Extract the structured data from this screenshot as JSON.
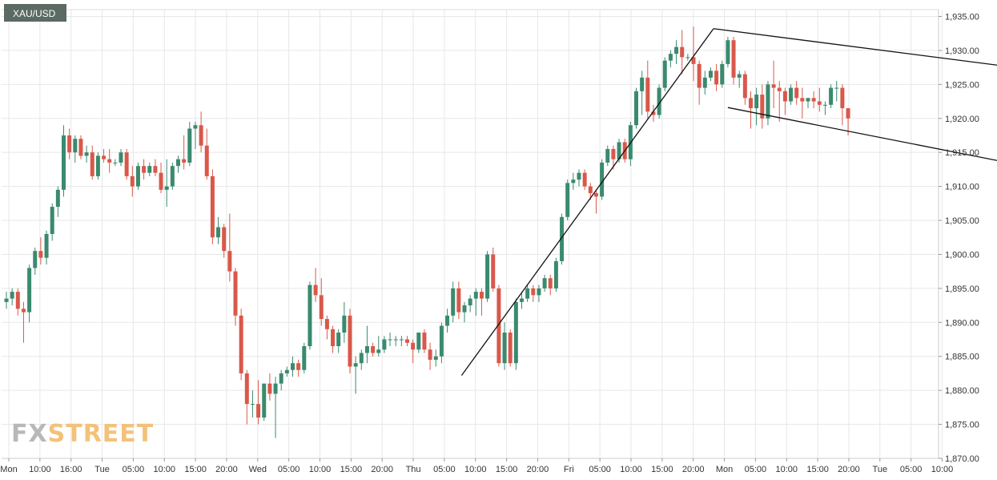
{
  "chart_data": {
    "type": "candlestick",
    "symbol": "XAU/USD",
    "watermark": {
      "part1": "FX",
      "part2": "STREET"
    },
    "colors": {
      "up": "#3a8a6e",
      "down": "#d9584a",
      "grid": "#e7e7e7",
      "pattern": "#111111",
      "label_bg": "#5b6a63"
    },
    "ylim": [
      1870,
      1936
    ],
    "y_ticks": [
      1870,
      1875,
      1880,
      1885,
      1890,
      1895,
      1900,
      1905,
      1910,
      1915,
      1920,
      1925,
      1930,
      1935
    ],
    "y_tick_labels": [
      "1,870.00",
      "1,875.00",
      "1,880.00",
      "1,885.00",
      "1,890.00",
      "1,895.00",
      "1,900.00",
      "1,905.00",
      "1,910.00",
      "1,915.00",
      "1,920.00",
      "1,925.00",
      "1,930.00",
      "1,935.00"
    ],
    "x_tick_labels": [
      "Mon",
      "10:00",
      "16:00",
      "Tue",
      "05:00",
      "10:00",
      "15:00",
      "20:00",
      "Wed",
      "05:00",
      "10:00",
      "15:00",
      "20:00",
      "Thu",
      "05:00",
      "10:00",
      "15:00",
      "20:00",
      "Fri",
      "05:00",
      "10:00",
      "15:00",
      "20:00",
      "Mon",
      "05:00",
      "10:00",
      "15:00",
      "20:00",
      "Tue",
      "05:00",
      "10:00"
    ],
    "candles": [
      [
        1893.0,
        1894.5,
        1892.0,
        1893.5
      ],
      [
        1893.5,
        1895.0,
        1892.5,
        1894.5
      ],
      [
        1894.5,
        1895.0,
        1891.0,
        1892.0
      ],
      [
        1892.0,
        1893.0,
        1887.0,
        1891.5
      ],
      [
        1891.5,
        1898.5,
        1890.0,
        1898.0
      ],
      [
        1898.0,
        1901.0,
        1897.0,
        1900.5
      ],
      [
        1900.5,
        1902.5,
        1898.5,
        1899.5
      ],
      [
        1899.5,
        1903.5,
        1898.5,
        1903.0
      ],
      [
        1903.0,
        1907.5,
        1902.0,
        1907.0
      ],
      [
        1907.0,
        1910.0,
        1905.5,
        1909.5
      ],
      [
        1909.5,
        1919.0,
        1908.5,
        1917.5
      ],
      [
        1917.5,
        1918.5,
        1914.0,
        1915.0
      ],
      [
        1915.0,
        1917.5,
        1913.5,
        1917.0
      ],
      [
        1917.0,
        1917.5,
        1914.0,
        1914.5
      ],
      [
        1914.5,
        1916.0,
        1913.5,
        1915.0
      ],
      [
        1915.0,
        1916.0,
        1911.0,
        1911.5
      ],
      [
        1911.5,
        1915.0,
        1911.0,
        1914.5
      ],
      [
        1914.5,
        1915.5,
        1913.5,
        1914.0
      ],
      [
        1914.0,
        1915.5,
        1912.0,
        1913.5
      ],
      [
        1913.5,
        1914.0,
        1913.0,
        1913.5
      ],
      [
        1913.5,
        1915.5,
        1913.0,
        1915.0
      ],
      [
        1915.0,
        1915.5,
        1911.0,
        1911.5
      ],
      [
        1911.5,
        1913.0,
        1908.5,
        1910.0
      ],
      [
        1910.0,
        1913.5,
        1909.5,
        1913.0
      ],
      [
        1913.0,
        1914.0,
        1911.0,
        1912.0
      ],
      [
        1912.0,
        1913.5,
        1911.5,
        1913.0
      ],
      [
        1913.0,
        1914.0,
        1911.5,
        1912.0
      ],
      [
        1912.0,
        1913.5,
        1909.0,
        1909.5
      ],
      [
        1909.5,
        1914.0,
        1907.0,
        1910.0
      ],
      [
        1910.0,
        1913.5,
        1909.5,
        1913.0
      ],
      [
        1913.0,
        1914.5,
        1912.0,
        1914.0
      ],
      [
        1914.0,
        1917.5,
        1912.5,
        1913.5
      ],
      [
        1913.5,
        1919.5,
        1913.0,
        1918.5
      ],
      [
        1918.5,
        1919.5,
        1915.5,
        1919.0
      ],
      [
        1919.0,
        1921.0,
        1915.0,
        1916.0
      ],
      [
        1916.0,
        1918.5,
        1911.0,
        1911.5
      ],
      [
        1911.5,
        1912.5,
        1901.5,
        1902.5
      ],
      [
        1902.5,
        1905.5,
        1901.5,
        1904.0
      ],
      [
        1904.0,
        1904.5,
        1899.5,
        1900.5
      ],
      [
        1900.5,
        1906.0,
        1896.0,
        1897.5
      ],
      [
        1897.5,
        1898.0,
        1889.5,
        1891.0
      ],
      [
        1891.0,
        1892.0,
        1881.5,
        1882.5
      ],
      [
        1882.5,
        1883.0,
        1875.0,
        1878.0
      ],
      [
        1878.0,
        1880.0,
        1876.0,
        1878.0
      ],
      [
        1878.0,
        1881.5,
        1875.0,
        1876.0
      ],
      [
        1876.0,
        1881.0,
        1875.5,
        1881.0
      ],
      [
        1881.0,
        1882.5,
        1878.5,
        1879.5
      ],
      [
        1879.5,
        1882.0,
        1873.0,
        1881.0
      ],
      [
        1881.0,
        1883.0,
        1880.0,
        1882.5
      ],
      [
        1882.5,
        1883.5,
        1882.0,
        1883.0
      ],
      [
        1883.0,
        1885.0,
        1882.0,
        1884.0
      ],
      [
        1884.0,
        1884.5,
        1882.0,
        1883.0
      ],
      [
        1883.0,
        1887.0,
        1882.5,
        1886.5
      ],
      [
        1886.5,
        1896.0,
        1886.0,
        1895.5
      ],
      [
        1895.5,
        1898.0,
        1893.0,
        1894.0
      ],
      [
        1894.0,
        1896.5,
        1889.5,
        1890.5
      ],
      [
        1890.5,
        1891.0,
        1887.5,
        1889.0
      ],
      [
        1889.0,
        1889.5,
        1885.5,
        1886.5
      ],
      [
        1886.5,
        1889.0,
        1885.5,
        1888.5
      ],
      [
        1888.5,
        1893.0,
        1887.0,
        1891.0
      ],
      [
        1891.0,
        1892.0,
        1882.5,
        1883.5
      ],
      [
        1883.5,
        1885.0,
        1879.5,
        1884.0
      ],
      [
        1884.0,
        1886.0,
        1883.0,
        1885.5
      ],
      [
        1885.5,
        1889.5,
        1884.0,
        1886.5
      ],
      [
        1886.5,
        1887.0,
        1885.0,
        1885.5
      ],
      [
        1885.5,
        1888.0,
        1885.0,
        1886.0
      ],
      [
        1886.0,
        1888.0,
        1885.5,
        1887.5
      ],
      [
        1887.5,
        1888.5,
        1886.5,
        1887.5
      ],
      [
        1887.5,
        1888.0,
        1886.5,
        1887.5
      ],
      [
        1887.5,
        1888.0,
        1886.5,
        1887.5
      ],
      [
        1887.5,
        1888.0,
        1886.5,
        1887.0
      ],
      [
        1887.0,
        1887.5,
        1884.0,
        1886.0
      ],
      [
        1886.0,
        1888.5,
        1885.5,
        1888.5
      ],
      [
        1888.5,
        1889.0,
        1885.5,
        1886.0
      ],
      [
        1886.0,
        1887.0,
        1883.0,
        1884.5
      ],
      [
        1884.5,
        1886.0,
        1883.5,
        1885.0
      ],
      [
        1885.0,
        1890.0,
        1884.0,
        1889.5
      ],
      [
        1889.5,
        1892.0,
        1888.5,
        1891.0
      ],
      [
        1891.0,
        1896.0,
        1890.0,
        1895.0
      ],
      [
        1895.0,
        1896.0,
        1890.5,
        1891.5
      ],
      [
        1891.5,
        1893.0,
        1890.0,
        1892.5
      ],
      [
        1892.5,
        1894.0,
        1891.5,
        1893.5
      ],
      [
        1893.5,
        1895.0,
        1891.0,
        1894.5
      ],
      [
        1894.5,
        1895.0,
        1891.0,
        1893.5
      ],
      [
        1893.5,
        1900.5,
        1893.0,
        1900.0
      ],
      [
        1900.0,
        1901.0,
        1894.5,
        1895.0
      ],
      [
        1895.0,
        1895.5,
        1883.5,
        1884.0
      ],
      [
        1884.0,
        1890.0,
        1883.0,
        1888.5
      ],
      [
        1888.5,
        1889.0,
        1883.5,
        1884.0
      ],
      [
        1884.0,
        1893.5,
        1883.0,
        1893.0
      ],
      [
        1893.0,
        1894.5,
        1892.0,
        1893.5
      ],
      [
        1893.5,
        1895.5,
        1893.0,
        1895.0
      ],
      [
        1895.0,
        1895.5,
        1893.0,
        1894.0
      ],
      [
        1894.0,
        1895.5,
        1893.0,
        1895.0
      ],
      [
        1895.0,
        1897.0,
        1894.5,
        1896.5
      ],
      [
        1896.5,
        1897.0,
        1894.0,
        1895.0
      ],
      [
        1895.0,
        1899.5,
        1894.5,
        1899.0
      ],
      [
        1899.0,
        1906.0,
        1898.5,
        1905.5
      ],
      [
        1905.5,
        1911.0,
        1905.0,
        1910.5
      ],
      [
        1910.5,
        1912.0,
        1909.5,
        1911.0
      ],
      [
        1911.0,
        1912.5,
        1910.0,
        1912.0
      ],
      [
        1912.0,
        1912.5,
        1909.5,
        1910.0
      ],
      [
        1910.0,
        1910.5,
        1908.0,
        1909.0
      ],
      [
        1909.0,
        1909.5,
        1906.0,
        1908.5
      ],
      [
        1908.5,
        1914.0,
        1908.0,
        1913.5
      ],
      [
        1913.5,
        1916.0,
        1913.0,
        1915.5
      ],
      [
        1915.5,
        1916.0,
        1912.5,
        1914.0
      ],
      [
        1914.0,
        1917.0,
        1913.5,
        1916.5
      ],
      [
        1916.5,
        1917.0,
        1913.5,
        1914.0
      ],
      [
        1914.0,
        1919.5,
        1913.0,
        1919.0
      ],
      [
        1919.0,
        1924.5,
        1918.5,
        1924.0
      ],
      [
        1924.0,
        1927.0,
        1920.5,
        1926.0
      ],
      [
        1926.0,
        1928.5,
        1920.0,
        1921.0
      ],
      [
        1921.0,
        1922.0,
        1919.5,
        1920.5
      ],
      [
        1920.5,
        1925.0,
        1920.0,
        1924.5
      ],
      [
        1924.5,
        1929.0,
        1924.0,
        1928.5
      ],
      [
        1928.5,
        1930.0,
        1927.5,
        1929.5
      ],
      [
        1929.5,
        1931.5,
        1928.0,
        1930.5
      ],
      [
        1930.5,
        1933.0,
        1926.5,
        1929.0
      ],
      [
        1929.0,
        1929.5,
        1928.5,
        1929.0
      ],
      [
        1929.0,
        1933.5,
        1925.5,
        1928.0
      ],
      [
        1928.0,
        1928.5,
        1922.0,
        1924.5
      ],
      [
        1924.5,
        1927.0,
        1923.5,
        1926.0
      ],
      [
        1926.0,
        1927.5,
        1925.5,
        1927.0
      ],
      [
        1927.0,
        1928.0,
        1924.0,
        1925.0
      ],
      [
        1925.0,
        1928.5,
        1924.5,
        1928.0
      ],
      [
        1928.0,
        1932.0,
        1927.5,
        1931.5
      ],
      [
        1931.5,
        1932.0,
        1925.0,
        1926.0
      ],
      [
        1926.0,
        1927.0,
        1924.5,
        1926.5
      ],
      [
        1926.5,
        1927.0,
        1922.0,
        1923.0
      ],
      [
        1923.0,
        1924.0,
        1918.5,
        1921.5
      ],
      [
        1921.5,
        1924.5,
        1919.0,
        1923.5
      ],
      [
        1923.5,
        1925.0,
        1918.5,
        1920.0
      ],
      [
        1920.0,
        1925.5,
        1919.0,
        1925.0
      ],
      [
        1925.0,
        1928.5,
        1921.5,
        1924.5
      ],
      [
        1924.5,
        1925.5,
        1919.5,
        1924.0
      ],
      [
        1924.0,
        1924.5,
        1920.5,
        1922.5
      ],
      [
        1922.5,
        1925.0,
        1922.0,
        1924.5
      ],
      [
        1924.5,
        1925.5,
        1922.0,
        1923.0
      ],
      [
        1923.0,
        1924.5,
        1920.0,
        1922.5
      ],
      [
        1922.5,
        1923.0,
        1921.5,
        1923.0
      ],
      [
        1923.0,
        1924.0,
        1921.5,
        1922.5
      ],
      [
        1922.5,
        1924.5,
        1921.0,
        1922.0
      ],
      [
        1922.0,
        1922.5,
        1920.5,
        1922.0
      ],
      [
        1922.0,
        1925.0,
        1921.5,
        1924.5
      ],
      [
        1924.5,
        1925.5,
        1922.5,
        1924.5
      ],
      [
        1924.5,
        1925.0,
        1919.0,
        1921.5
      ],
      [
        1921.5,
        1921.5,
        1917.5,
        1920.0
      ]
    ],
    "pattern_lines": [
      {
        "name": "flagpole-line",
        "p1": {
          "candle": 79.5,
          "price": 1882.2
        },
        "p2": {
          "candle": 123.5,
          "price": 1933.2
        }
      },
      {
        "name": "flag-upper-line",
        "p1": {
          "candle": 123.5,
          "price": 1933.2
        },
        "p2": {
          "candle": 190,
          "price": 1926.0
        }
      },
      {
        "name": "flag-lower-line",
        "p1": {
          "candle": 126,
          "price": 1921.6
        },
        "p2": {
          "candle": 190,
          "price": 1911.0
        }
      }
    ]
  }
}
